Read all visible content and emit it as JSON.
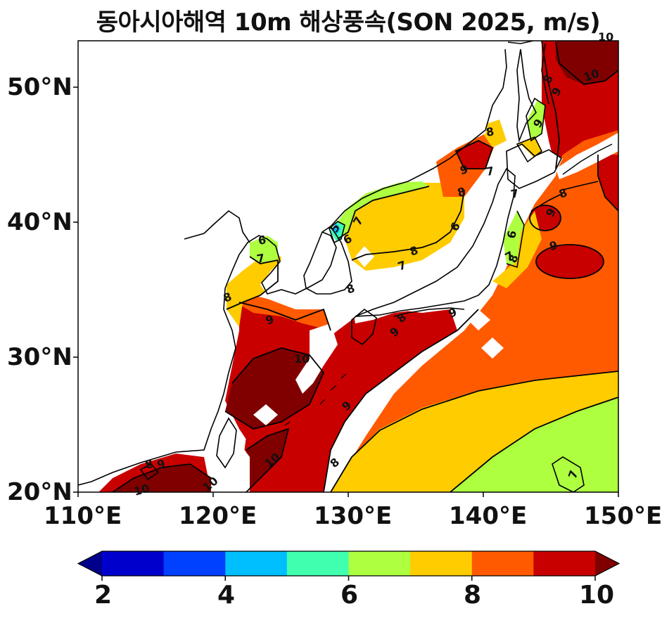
{
  "title": "동아시아해역 10m 해상풍속(SON 2025, m/s)",
  "lat_ticks": [
    "20°N",
    "30°N",
    "40°N",
    "50°N"
  ],
  "lon_ticks": [
    "110°E",
    "120°E",
    "130°E",
    "140°E",
    "150°E"
  ],
  "colorbar": {
    "tick_labels": [
      "2",
      "4",
      "6",
      "8",
      "10"
    ],
    "colors": [
      "#00008b",
      "#0000cd",
      "#0040ff",
      "#00bfff",
      "#40ffaf",
      "#adff40",
      "#ffcc00",
      "#ff5a00",
      "#c80000",
      "#800000"
    ]
  },
  "contour_labels": [
    "10",
    "9",
    "8",
    "9",
    "8",
    "7",
    "8",
    "9",
    "8",
    "7",
    "6",
    "7",
    "8",
    "9",
    "6",
    "7",
    "6",
    "5",
    "6",
    "7",
    "8",
    "8",
    "9",
    "10",
    "8",
    "7",
    "8",
    "9",
    "9",
    "10",
    "9",
    "10",
    "8",
    "9",
    "10",
    "10",
    "7",
    "9",
    "8"
  ],
  "map": {
    "extent": {
      "lon": [
        110,
        150
      ],
      "lat": [
        20,
        53.5
      ]
    },
    "variable": "10m wind speed",
    "units": "m/s",
    "land_color": "#ffffff",
    "coastline_color": "#000000"
  }
}
